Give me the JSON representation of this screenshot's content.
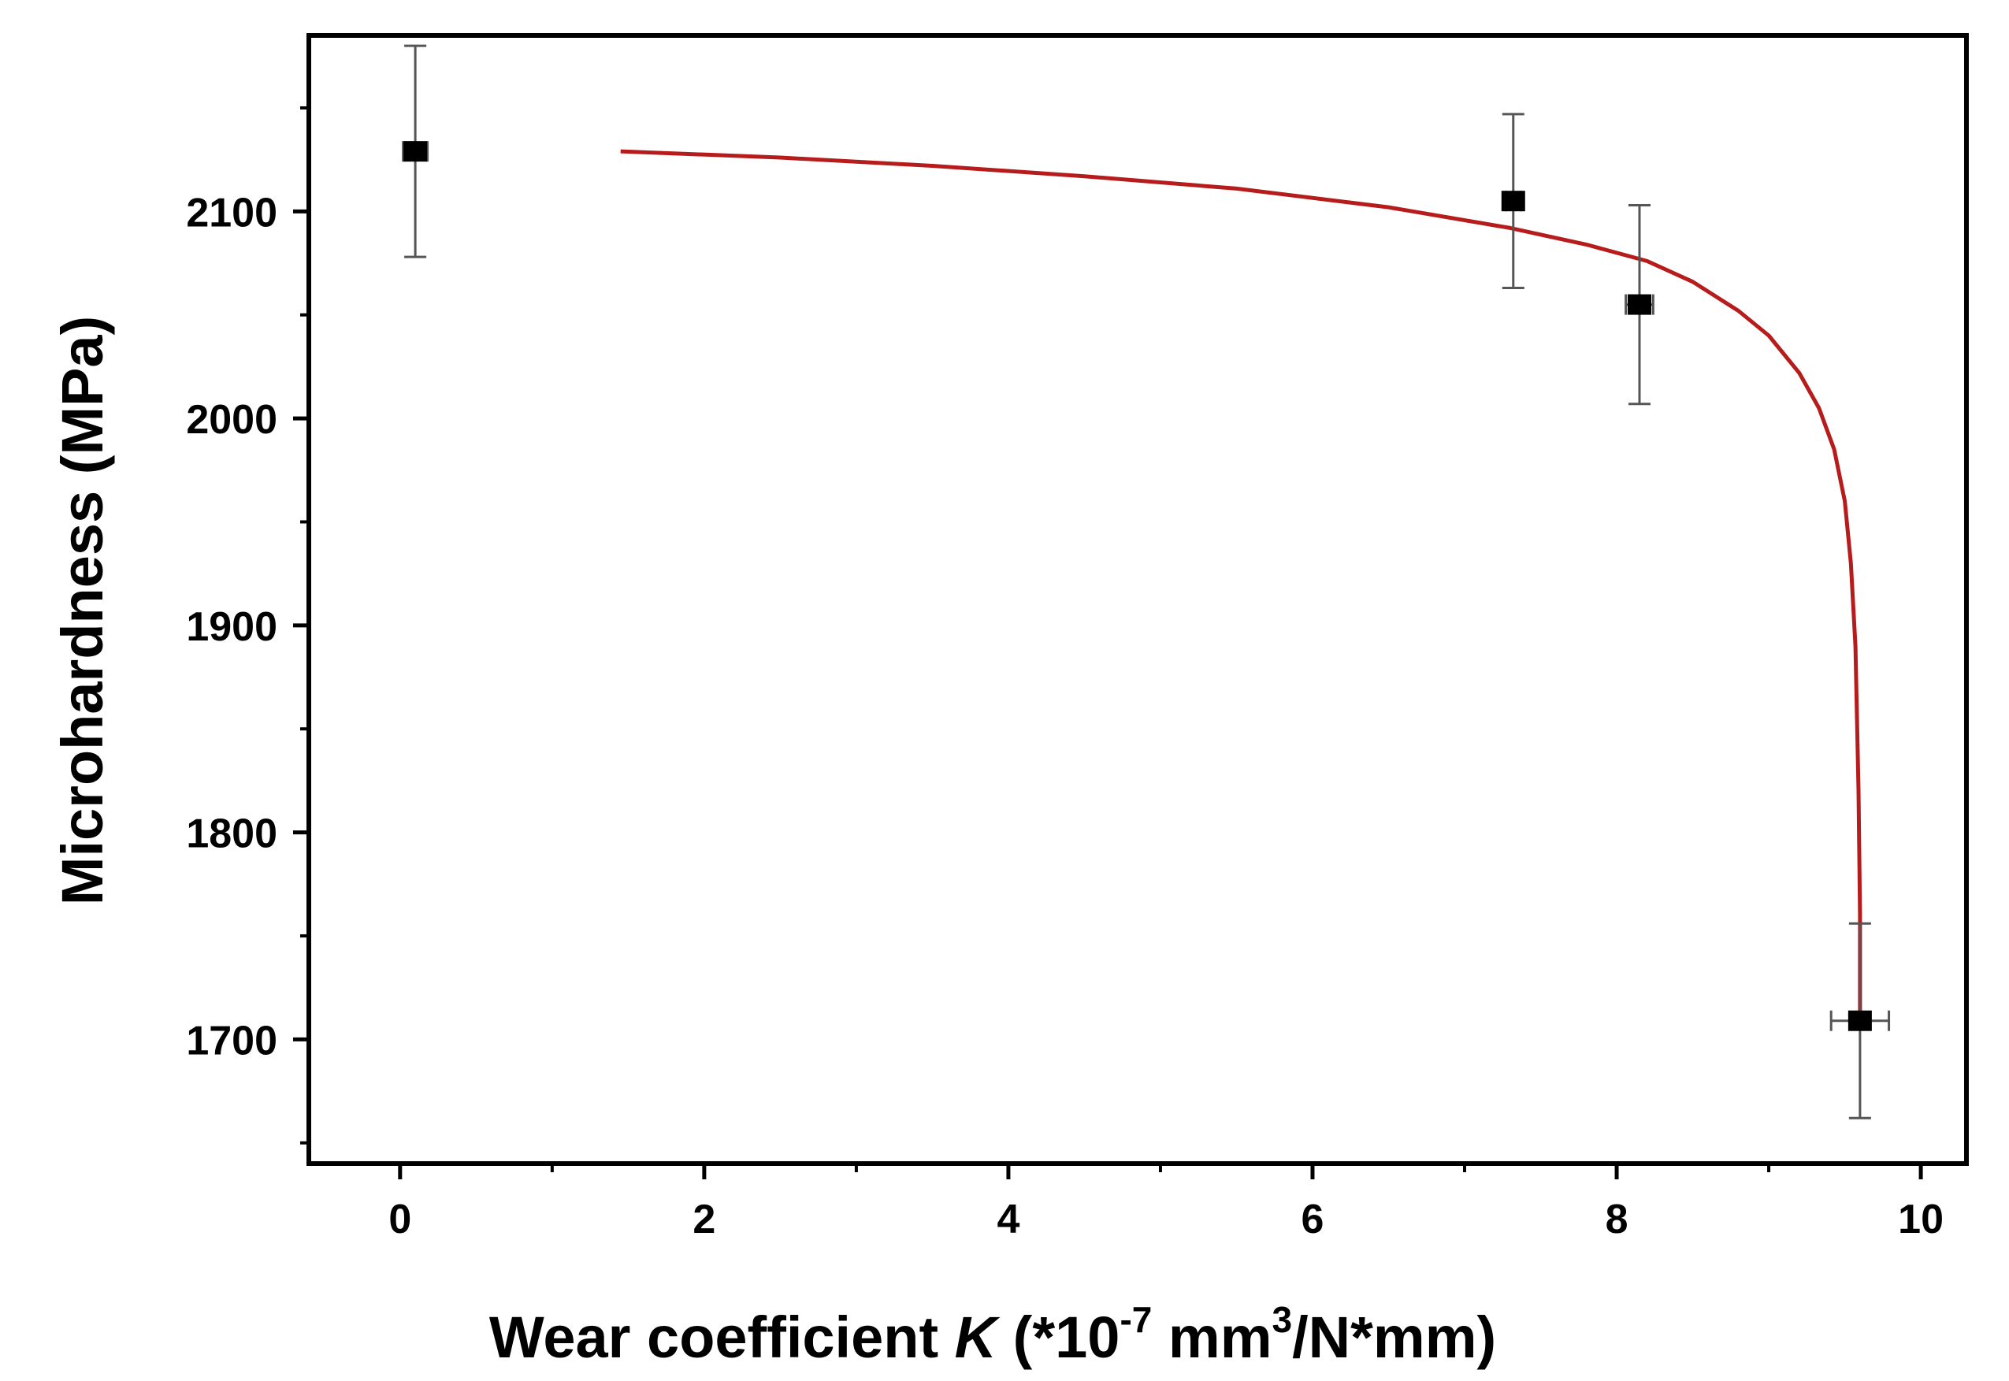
{
  "chart_data": {
    "type": "scatter",
    "title": "",
    "xlabel": {
      "prefix": "Wear coefficient ",
      "symbol": "K",
      "unit_open": " (*10",
      "exp1": "-7",
      "unit_mid": " mm",
      "exp2": "3",
      "unit_close": "/N*mm)"
    },
    "ylabel": "Microhardness (MPa)",
    "xlim": [
      -0.6,
      10.3
    ],
    "ylim": [
      1640,
      2185
    ],
    "x_ticks": [
      0,
      2,
      4,
      6,
      8,
      10
    ],
    "x_minor_ticks": [
      1,
      3,
      5,
      7,
      9
    ],
    "y_ticks": [
      1700,
      1800,
      1900,
      2000,
      2100
    ],
    "y_minor_ticks": [
      1650,
      1750,
      1850,
      1950,
      2050,
      2150
    ],
    "grid": false,
    "legend": "none",
    "series": [
      {
        "style": "points",
        "color": "#000000",
        "points": [
          {
            "x": 0.1,
            "y": 2129,
            "y_err": 51,
            "x_err": 0.08
          },
          {
            "x": 7.32,
            "y": 2105,
            "y_err": 42,
            "x_err": 0.05
          },
          {
            "x": 8.15,
            "y": 2055,
            "y_err": 48,
            "x_err": 0.09
          },
          {
            "x": 9.6,
            "y": 1709,
            "y_err": 47,
            "x_err": 0.19
          }
        ]
      },
      {
        "style": "fit-line",
        "color": "#b71c1c",
        "x": [
          1.45,
          2.5,
          3.5,
          4.5,
          5.5,
          6.5,
          7.3,
          7.8,
          8.2,
          8.5,
          8.8,
          9.0,
          9.2,
          9.33,
          9.43,
          9.5,
          9.54,
          9.57,
          9.59,
          9.6,
          9.6
        ],
        "y": [
          2129,
          2126,
          2122,
          2117,
          2111,
          2102,
          2092,
          2084,
          2076,
          2066,
          2052,
          2040,
          2022,
          2005,
          1985,
          1960,
          1930,
          1890,
          1820,
          1760,
          1709
        ]
      }
    ]
  }
}
